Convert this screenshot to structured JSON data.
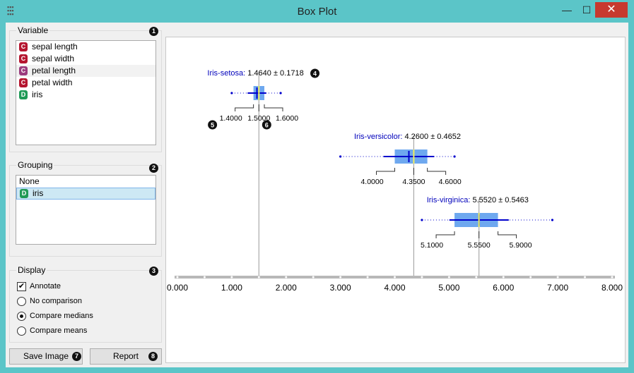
{
  "window": {
    "title": "Box Plot",
    "minimize_glyph": "—",
    "maximize_glyph": "☐",
    "close_glyph": "✕",
    "close_color": "#c7392f",
    "app_icon": "app-grid-icon"
  },
  "variable": {
    "title": "Variable",
    "badge": "1",
    "items": [
      {
        "type": "C",
        "label": "sepal length"
      },
      {
        "type": "C",
        "label": "sepal width"
      },
      {
        "type": "C",
        "label": "petal length"
      },
      {
        "type": "C",
        "label": "petal width"
      },
      {
        "type": "D",
        "label": "iris"
      }
    ]
  },
  "grouping": {
    "title": "Grouping",
    "badge": "2",
    "items": [
      {
        "type": "",
        "label": "None"
      },
      {
        "type": "D",
        "label": "iris"
      }
    ]
  },
  "display": {
    "title": "Display",
    "badge": "3",
    "annotate": {
      "label": "Annotate",
      "checked": true,
      "glyph": "✔"
    },
    "no_comparison": {
      "label": "No comparison",
      "checked": false
    },
    "compare_medians": {
      "label": "Compare medians",
      "checked": true
    },
    "compare_means": {
      "label": "Compare means",
      "checked": false
    }
  },
  "buttons": {
    "save_image": "Save Image",
    "save_badge": "7",
    "report": "Report",
    "report_badge": "8"
  },
  "chart_data": {
    "type": "box",
    "x_ticks": [
      "0.000",
      "1.000",
      "2.000",
      "3.000",
      "4.000",
      "5.000",
      "6.000",
      "7.000",
      "8.000"
    ],
    "xlim": [
      0,
      8
    ],
    "series": [
      {
        "name": "Iris-setosa",
        "stat": "1.4640 ± 0.1718",
        "min": 1.0,
        "max": 1.9,
        "q1": 1.4,
        "median": 1.5,
        "q3": 1.6,
        "mean": 1.464,
        "sd": 0.1718,
        "labels": [
          "1.4000",
          "1.5000",
          "1.6000"
        ]
      },
      {
        "name": "Iris-versicolor",
        "stat": "4.2600 ± 0.4652",
        "min": 3.0,
        "max": 5.1,
        "q1": 4.0,
        "median": 4.35,
        "q3": 4.6,
        "mean": 4.26,
        "sd": 0.4652,
        "labels": [
          "4.0000",
          "4.3500",
          "4.6000"
        ]
      },
      {
        "name": "Iris-virginica",
        "stat": "5.5520 ± 0.5463",
        "min": 4.5,
        "max": 6.9,
        "q1": 5.1,
        "median": 5.55,
        "q3": 5.9,
        "mean": 5.552,
        "sd": 0.5463,
        "labels": [
          "5.1000",
          "5.5500",
          "5.9000"
        ]
      }
    ],
    "annotation_badges": [
      "4",
      "5",
      "6"
    ],
    "colors": {
      "box": "#6ea8ef",
      "mean_line": "#0000cc",
      "median": "#f2ef5a",
      "name_text": "#0000bb",
      "guide": "#aaaaaa"
    }
  }
}
